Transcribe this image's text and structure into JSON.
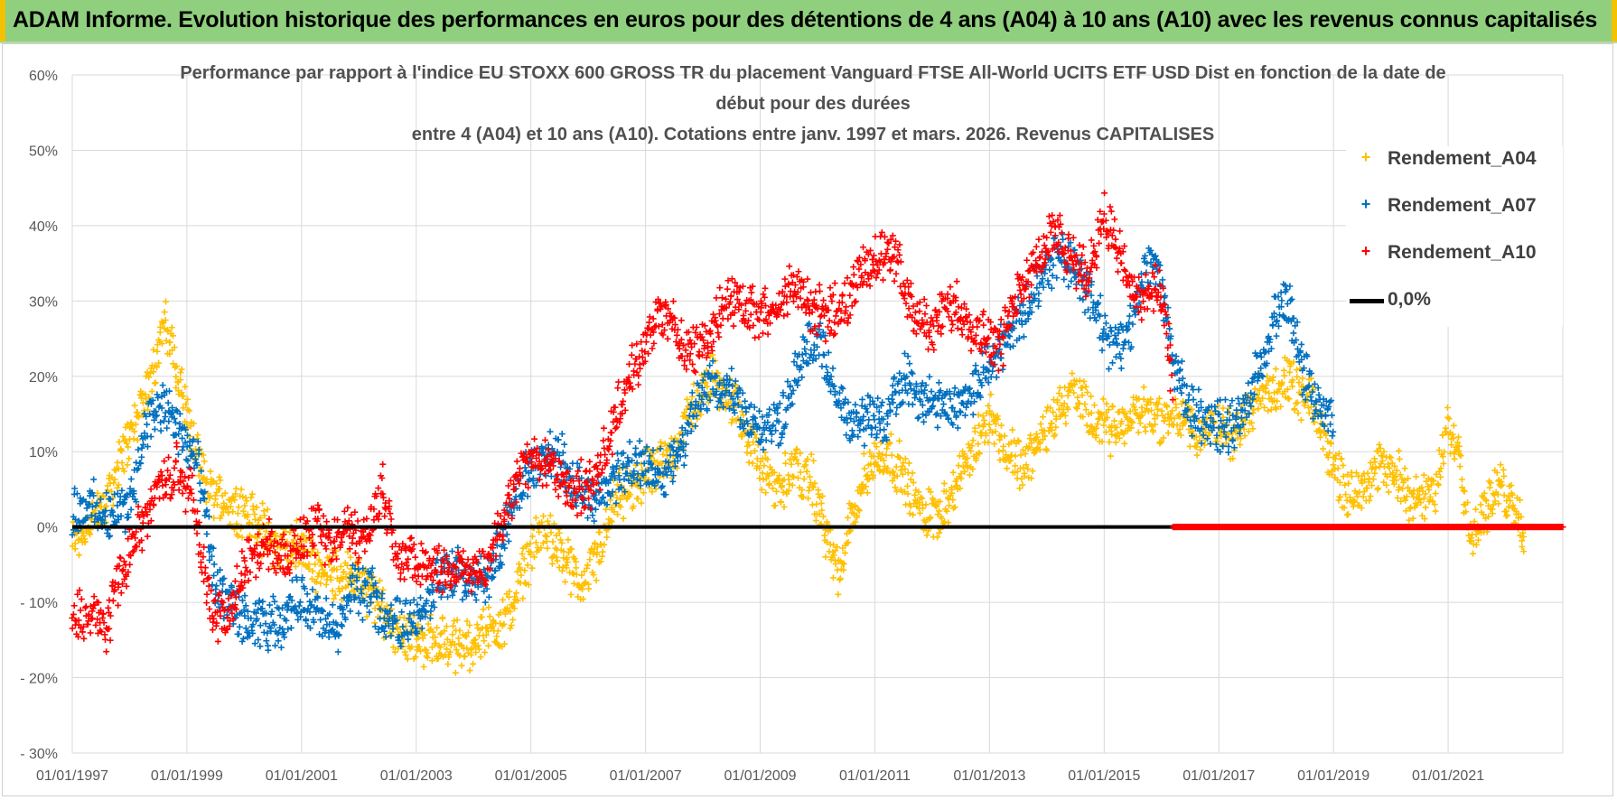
{
  "banner": {
    "title": "ADAM Informe. Evolution historique des performances en euros pour des détentions de 4 ans (A04) à 10 ans (A10) avec les revenus connus capitalisés"
  },
  "colors": {
    "banner_bg": "#8fcf7e",
    "A04": "#ffc000",
    "A07": "#0070c0",
    "A10": "#ff0000",
    "zero_line": "#000000",
    "grid": "#d9d9d9"
  },
  "chart_data": {
    "type": "scatter",
    "title_lines": [
      "Performance par rapport à l'indice EU STOXX 600 GROSS TR  du placement Vanguard FTSE All-World UCITS ETF USD Dist en fonction de la date de",
      "début pour des durées",
      "entre 4 (A04) et 10 ans (A10). Cotations entre janv. 1997 et mars. 2026. Revenus CAPITALISES"
    ],
    "x_axis": {
      "type": "date",
      "range": [
        "01/01/1997",
        "01/01/2023"
      ],
      "tick_labels": [
        "01/01/1997",
        "01/01/1999",
        "01/01/2001",
        "01/01/2003",
        "01/01/2005",
        "01/01/2007",
        "01/01/2009",
        "01/01/2011",
        "01/01/2013",
        "01/01/2015",
        "01/01/2017",
        "01/01/2019",
        "01/01/2021"
      ]
    },
    "y_axis": {
      "range": [
        -30,
        60
      ],
      "unit": "%",
      "tick_values": [
        -30,
        -20,
        -10,
        0,
        10,
        20,
        30,
        40,
        50,
        60
      ],
      "tick_labels": [
        "- 30%",
        "- 20%",
        "- 10%",
        "0%",
        "10%",
        "20%",
        "30%",
        "40%",
        "50%",
        "60%"
      ]
    },
    "grid": true,
    "legend_position": "top-right",
    "legend": [
      "Rendement_A04",
      "Rendement_A07",
      "Rendement_A10",
      "0,0%"
    ],
    "marker": "+",
    "series": [
      {
        "name": "Rendement_A04",
        "color": "#ffc000",
        "keypoints": [
          [
            1997.0,
            -2
          ],
          [
            1997.5,
            2
          ],
          [
            1998.0,
            12
          ],
          [
            1998.3,
            18
          ],
          [
            1998.6,
            27
          ],
          [
            1998.8,
            22
          ],
          [
            1999.0,
            15
          ],
          [
            1999.2,
            8
          ],
          [
            1999.5,
            4
          ],
          [
            1999.8,
            3
          ],
          [
            2000.0,
            2
          ],
          [
            2000.3,
            0
          ],
          [
            2000.6,
            -3
          ],
          [
            2000.9,
            -2
          ],
          [
            2001.2,
            -5
          ],
          [
            2001.6,
            -6
          ],
          [
            2002.0,
            -7
          ],
          [
            2002.3,
            -10
          ],
          [
            2002.6,
            -13
          ],
          [
            2003.0,
            -15
          ],
          [
            2003.4,
            -15
          ],
          [
            2003.8,
            -16
          ],
          [
            2004.2,
            -14
          ],
          [
            2004.6,
            -12
          ],
          [
            2005.0,
            -3
          ],
          [
            2005.3,
            0
          ],
          [
            2005.6,
            -5
          ],
          [
            2005.9,
            -8
          ],
          [
            2006.2,
            -3
          ],
          [
            2006.5,
            4
          ],
          [
            2006.8,
            5
          ],
          [
            2007.0,
            7
          ],
          [
            2007.3,
            8
          ],
          [
            2007.6,
            12
          ],
          [
            2007.9,
            17
          ],
          [
            2008.2,
            20
          ],
          [
            2008.5,
            17
          ],
          [
            2008.8,
            12
          ],
          [
            2009.0,
            8
          ],
          [
            2009.3,
            5
          ],
          [
            2009.6,
            8
          ],
          [
            2009.9,
            6
          ],
          [
            2010.2,
            -2
          ],
          [
            2010.4,
            -7
          ],
          [
            2010.6,
            2
          ],
          [
            2010.9,
            8
          ],
          [
            2011.2,
            10
          ],
          [
            2011.5,
            7
          ],
          [
            2011.8,
            2
          ],
          [
            2012.1,
            2
          ],
          [
            2012.4,
            5
          ],
          [
            2012.7,
            10
          ],
          [
            2013.0,
            15
          ],
          [
            2013.3,
            10
          ],
          [
            2013.6,
            8
          ],
          [
            2013.9,
            12
          ],
          [
            2014.2,
            16
          ],
          [
            2014.5,
            18
          ],
          [
            2014.8,
            14
          ],
          [
            2015.1,
            13
          ],
          [
            2015.4,
            14
          ],
          [
            2015.7,
            16
          ],
          [
            2016.0,
            14
          ],
          [
            2016.3,
            15
          ],
          [
            2016.6,
            12
          ],
          [
            2016.9,
            14
          ],
          [
            2017.2,
            12
          ],
          [
            2017.5,
            15
          ],
          [
            2017.8,
            18
          ],
          [
            2018.1,
            19
          ],
          [
            2018.4,
            18
          ],
          [
            2018.7,
            15
          ],
          [
            2019.0,
            8
          ],
          [
            2019.3,
            4
          ],
          [
            2019.6,
            7
          ],
          [
            2019.9,
            8
          ],
          [
            2020.2,
            6
          ],
          [
            2020.5,
            3
          ],
          [
            2020.8,
            5
          ],
          [
            2021.0,
            14
          ],
          [
            2021.2,
            10
          ],
          [
            2021.4,
            -2
          ],
          [
            2021.6,
            2
          ],
          [
            2021.9,
            5
          ],
          [
            2022.2,
            3
          ],
          [
            2022.35,
            -3
          ]
        ]
      },
      {
        "name": "Rendement_A07",
        "color": "#0070c0",
        "keypoints": [
          [
            1997.0,
            2
          ],
          [
            1997.3,
            3
          ],
          [
            1997.6,
            1
          ],
          [
            1998.0,
            3
          ],
          [
            1998.3,
            14
          ],
          [
            1998.6,
            16
          ],
          [
            1998.9,
            12
          ],
          [
            1999.2,
            8
          ],
          [
            1999.5,
            -8
          ],
          [
            1999.8,
            -11
          ],
          [
            2000.1,
            -13
          ],
          [
            2000.4,
            -13
          ],
          [
            2000.7,
            -12
          ],
          [
            2001.0,
            -9
          ],
          [
            2001.3,
            -12
          ],
          [
            2001.6,
            -14
          ],
          [
            2001.9,
            -8
          ],
          [
            2002.2,
            -9
          ],
          [
            2002.5,
            -12
          ],
          [
            2002.8,
            -13
          ],
          [
            2003.1,
            -11
          ],
          [
            2003.4,
            -7
          ],
          [
            2003.7,
            -6
          ],
          [
            2004.0,
            -8
          ],
          [
            2004.3,
            -6
          ],
          [
            2004.6,
            0
          ],
          [
            2004.9,
            7
          ],
          [
            2005.2,
            9
          ],
          [
            2005.5,
            10
          ],
          [
            2005.8,
            5
          ],
          [
            2006.1,
            3
          ],
          [
            2006.4,
            6
          ],
          [
            2006.7,
            8
          ],
          [
            2007.0,
            8
          ],
          [
            2007.3,
            7
          ],
          [
            2007.6,
            10
          ],
          [
            2007.9,
            16
          ],
          [
            2008.2,
            19
          ],
          [
            2008.5,
            18
          ],
          [
            2008.8,
            15
          ],
          [
            2009.1,
            12
          ],
          [
            2009.4,
            15
          ],
          [
            2009.7,
            22
          ],
          [
            2010.0,
            25
          ],
          [
            2010.3,
            18
          ],
          [
            2010.6,
            13
          ],
          [
            2010.9,
            15
          ],
          [
            2011.2,
            14
          ],
          [
            2011.5,
            20
          ],
          [
            2011.8,
            17
          ],
          [
            2012.1,
            16
          ],
          [
            2012.4,
            16
          ],
          [
            2012.7,
            18
          ],
          [
            2013.0,
            22
          ],
          [
            2013.3,
            25
          ],
          [
            2013.6,
            29
          ],
          [
            2013.9,
            33
          ],
          [
            2014.2,
            37
          ],
          [
            2014.5,
            34
          ],
          [
            2014.8,
            30
          ],
          [
            2015.1,
            24
          ],
          [
            2015.4,
            25
          ],
          [
            2015.7,
            34
          ],
          [
            2015.9,
            36
          ],
          [
            2016.2,
            22
          ],
          [
            2016.5,
            16
          ],
          [
            2016.8,
            14
          ],
          [
            2017.1,
            13
          ],
          [
            2017.4,
            14
          ],
          [
            2017.7,
            21
          ],
          [
            2018.0,
            28
          ],
          [
            2018.2,
            30
          ],
          [
            2018.5,
            20
          ],
          [
            2018.8,
            15
          ],
          [
            2019.0,
            14
          ]
        ]
      },
      {
        "name": "Rendement_A10",
        "color": "#ff0000",
        "keypoints": [
          [
            1997.0,
            -12
          ],
          [
            1997.3,
            -12
          ],
          [
            1997.6,
            -13
          ],
          [
            1997.9,
            -5
          ],
          [
            1998.2,
            0
          ],
          [
            1998.5,
            5
          ],
          [
            1998.8,
            8
          ],
          [
            1999.1,
            4
          ],
          [
            1999.4,
            -10
          ],
          [
            1999.7,
            -13
          ],
          [
            2000.0,
            -5
          ],
          [
            2000.3,
            -2
          ],
          [
            2000.6,
            -3
          ],
          [
            2000.9,
            -3
          ],
          [
            2001.2,
            0
          ],
          [
            2001.5,
            -3
          ],
          [
            2001.8,
            0
          ],
          [
            2002.1,
            -2
          ],
          [
            2002.4,
            5
          ],
          [
            2002.7,
            -4
          ],
          [
            2003.0,
            -5
          ],
          [
            2003.3,
            -5
          ],
          [
            2003.6,
            -6
          ],
          [
            2003.9,
            -5
          ],
          [
            2004.2,
            -6
          ],
          [
            2004.5,
            0
          ],
          [
            2004.8,
            8
          ],
          [
            2005.1,
            9
          ],
          [
            2005.4,
            8
          ],
          [
            2005.7,
            5
          ],
          [
            2006.0,
            5
          ],
          [
            2006.3,
            10
          ],
          [
            2006.6,
            18
          ],
          [
            2006.9,
            22
          ],
          [
            2007.2,
            28
          ],
          [
            2007.5,
            27
          ],
          [
            2007.8,
            23
          ],
          [
            2008.1,
            25
          ],
          [
            2008.4,
            30
          ],
          [
            2008.7,
            30
          ],
          [
            2009.0,
            28
          ],
          [
            2009.3,
            30
          ],
          [
            2009.6,
            32
          ],
          [
            2009.9,
            29
          ],
          [
            2010.2,
            28
          ],
          [
            2010.5,
            30
          ],
          [
            2010.8,
            34
          ],
          [
            2011.1,
            36
          ],
          [
            2011.4,
            35
          ],
          [
            2011.7,
            28
          ],
          [
            2012.0,
            26
          ],
          [
            2012.3,
            30
          ],
          [
            2012.6,
            27
          ],
          [
            2012.9,
            26
          ],
          [
            2013.2,
            24
          ],
          [
            2013.5,
            32
          ],
          [
            2013.8,
            35
          ],
          [
            2014.1,
            39
          ],
          [
            2014.4,
            36
          ],
          [
            2014.7,
            33
          ],
          [
            2015.0,
            42
          ],
          [
            2015.3,
            35
          ],
          [
            2015.6,
            30
          ],
          [
            2015.9,
            32
          ],
          [
            2016.1,
            26
          ],
          [
            2016.2,
            18
          ]
        ],
        "zero_segment": [
          "2016.2",
          "2023.0"
        ]
      }
    ]
  }
}
